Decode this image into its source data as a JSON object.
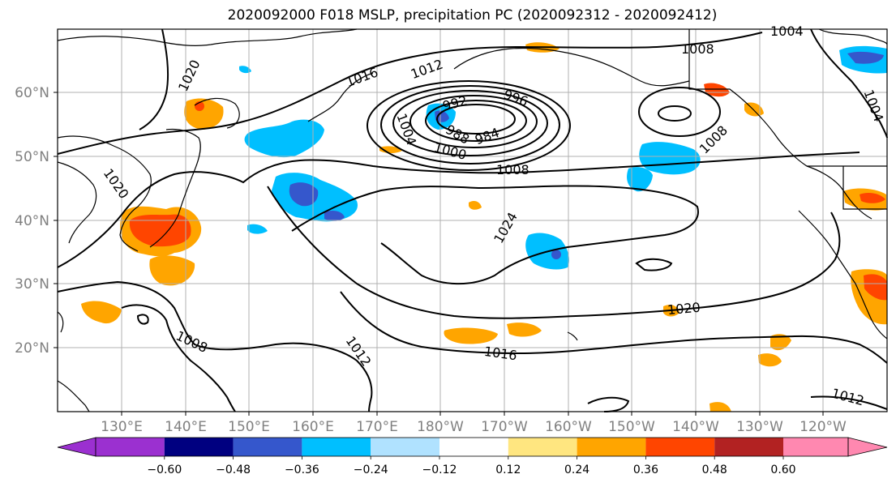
{
  "title": "2020092000 F018 MSLP, precipitation PC (2020092312 - 2020092412)",
  "longitude_labels": [
    "130°E",
    "140°E",
    "150°E",
    "160°E",
    "170°E",
    "180°W",
    "170°W",
    "160°W",
    "150°W",
    "140°W",
    "130°W",
    "120°W"
  ],
  "latitude_labels": [
    "60°N",
    "50°N",
    "40°N",
    "30°N",
    "20°N"
  ],
  "contour_labels": [
    "1020",
    "1016",
    "1012",
    "1004",
    "1008",
    "992",
    "996",
    "988",
    "984",
    "1000",
    "1008",
    "1008",
    "1024",
    "1004",
    "1020",
    "1020",
    "1016",
    "1012",
    "1008",
    "1012",
    "1004"
  ],
  "colorbar": {
    "ticks": [
      "−0.60",
      "−0.48",
      "−0.36",
      "−0.24",
      "−0.12",
      "0.12",
      "0.24",
      "0.36",
      "0.48",
      "0.60"
    ],
    "colors": [
      "#9b30d0",
      "#000080",
      "#3557cc",
      "#00bfff",
      "#b0e2ff",
      "#ffffff",
      "#ffe680",
      "#ffa500",
      "#ff4500",
      "#b22222",
      "#ff88b0"
    ]
  },
  "colors": {
    "grid": "#b0b0b0",
    "contour": "#000000",
    "coast": "#000000"
  }
}
